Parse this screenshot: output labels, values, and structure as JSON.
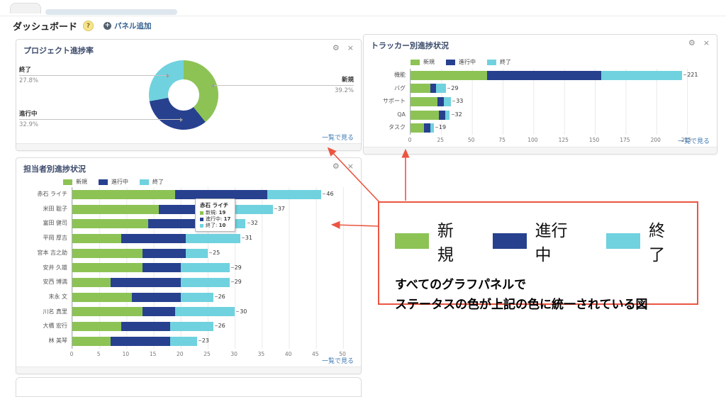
{
  "page": {
    "title": "ダッシュボード",
    "help": "?",
    "add_panel": "パネル追加"
  },
  "colors": {
    "new": "#8DC355",
    "in_progress": "#27418F",
    "closed": "#70D2DE",
    "annotation_red": "#EB5540",
    "link_blue": "#3C78B4"
  },
  "statuses": [
    {
      "label": "新規",
      "color": "#8DC355"
    },
    {
      "label": "進行中",
      "color": "#27418F"
    },
    {
      "label": "終了",
      "color": "#70D2DE"
    }
  ],
  "icons": {
    "gear": "⚙",
    "close": "×",
    "add": "+"
  },
  "panels": {
    "project_progress": {
      "title": "プロジェクト進捗率",
      "link": "一覧で見る",
      "chart": {
        "type": "pie",
        "slices": [
          {
            "label": "新規",
            "pct": 39.2,
            "pct_label": "39.2%"
          },
          {
            "label": "進行中",
            "pct": 32.9,
            "pct_label": "32.9%"
          },
          {
            "label": "終了",
            "pct": 27.8,
            "pct_label": "27.8%"
          }
        ]
      }
    },
    "by_tracker": {
      "title": "トラッカー別進捗状況",
      "link": "一覧で見る",
      "chart": {
        "type": "bar-stacked-horizontal",
        "categories": [
          "機能",
          "バグ",
          "サポート",
          "QA",
          "タスク"
        ],
        "series": [
          {
            "name": "新規",
            "values": [
              62,
              16,
              22,
              23,
              11
            ]
          },
          {
            "name": "進行中",
            "values": [
              93,
              5,
              5,
              5,
              5
            ]
          },
          {
            "name": "終了",
            "values": [
              66,
              8,
              6,
              4,
              3
            ]
          }
        ],
        "totals": [
          221,
          29,
          33,
          32,
          19
        ],
        "xticks": [
          0,
          25,
          50,
          75,
          100,
          125,
          150,
          175,
          200,
          225
        ]
      }
    },
    "by_assignee": {
      "title": "担当者別進捗状況",
      "link": "一覧で見る",
      "chart": {
        "type": "bar-stacked-horizontal",
        "categories": [
          "赤石 ライチ",
          "米田 聡子",
          "富田 健司",
          "平岡 厚吉",
          "宮本 吉之助",
          "安井 久雄",
          "安西 博満",
          "末永 文",
          "川名 真里",
          "大橋 宏行",
          "林 美琴"
        ],
        "series": [
          {
            "name": "新規",
            "values": [
              19,
              16,
              14,
              9,
              13,
              13,
              7,
              11,
              13,
              9,
              7
            ]
          },
          {
            "name": "進行中",
            "values": [
              17,
              8,
              9,
              12,
              8,
              7,
              13,
              9,
              6,
              9,
              11
            ]
          },
          {
            "name": "終了",
            "values": [
              10,
              13,
              9,
              10,
              4,
              9,
              9,
              6,
              11,
              8,
              5
            ]
          }
        ],
        "totals": [
          46,
          37,
          32,
          31,
          25,
          29,
          29,
          26,
          30,
          26,
          23
        ],
        "xticks": [
          0,
          5,
          10,
          15,
          20,
          25,
          30,
          35,
          40,
          45,
          50
        ]
      },
      "tooltip": {
        "title": "赤石 ライチ",
        "rows": [
          {
            "label": "新規",
            "value": "19"
          },
          {
            "label": "進行中",
            "value": "17"
          },
          {
            "label": "終了",
            "value": "10"
          }
        ]
      }
    }
  },
  "annotation": {
    "caption_line1": "すべてのグラフパネルで",
    "caption_line2": "ステータスの色が上記の色に統一されている図"
  }
}
